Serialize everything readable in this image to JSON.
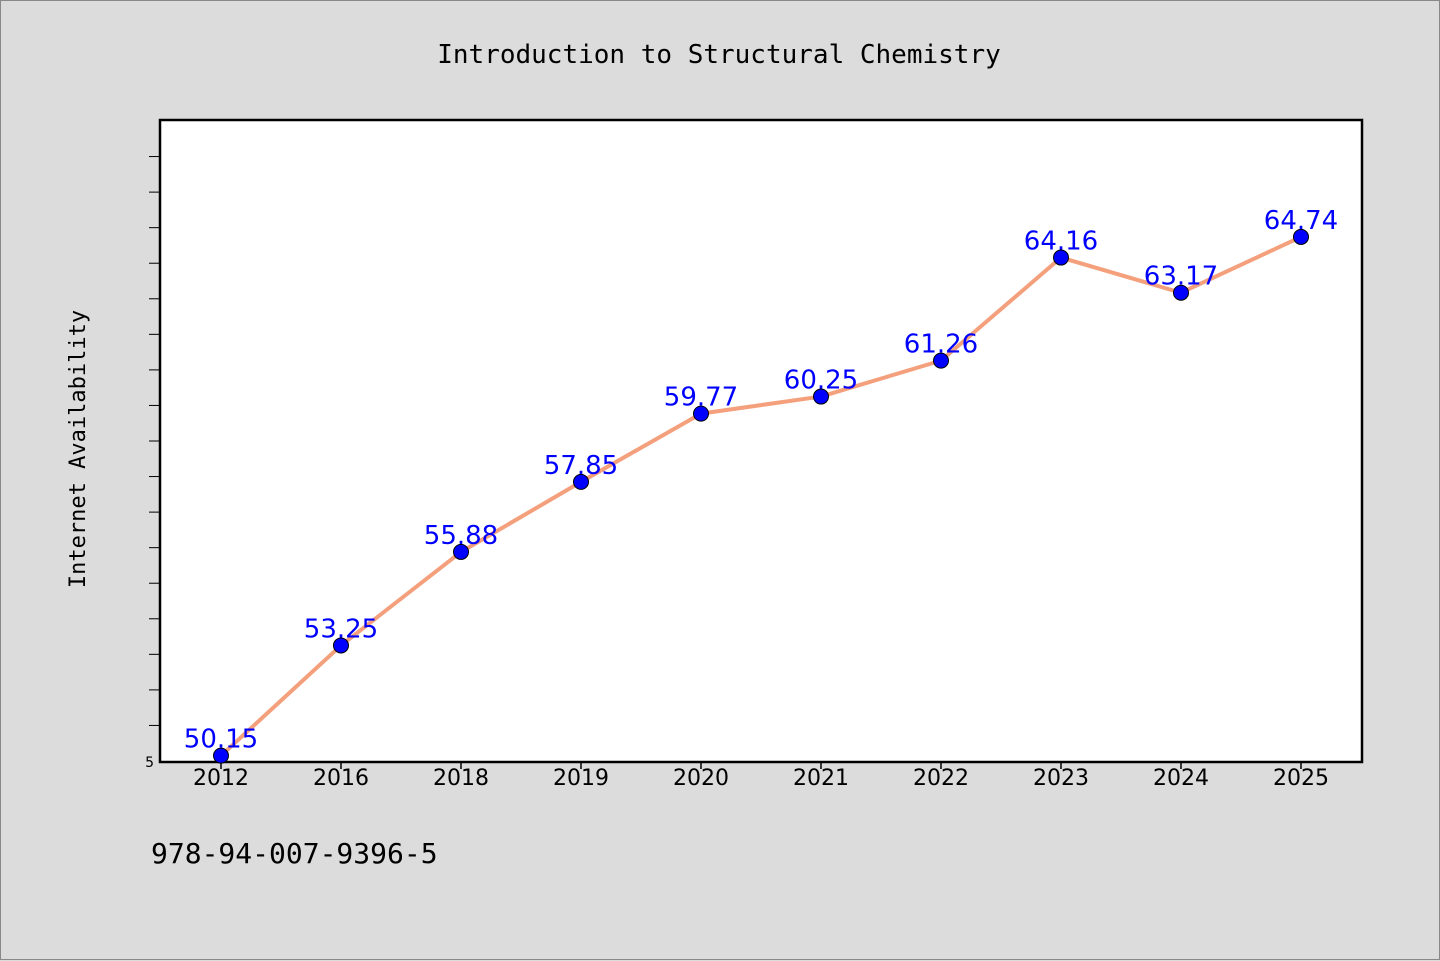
{
  "chart_data": {
    "type": "line",
    "title": "Introduction to Structural Chemistry",
    "ylabel": "Internet Availability",
    "xlabel": "",
    "categories": [
      "2012",
      "2016",
      "2018",
      "2019",
      "2020",
      "2021",
      "2022",
      "2023",
      "2024",
      "2025"
    ],
    "series": [
      {
        "values": [
          50.15,
          53.25,
          55.88,
          57.85,
          59.77,
          60.25,
          61.26,
          64.16,
          63.17,
          64.74
        ],
        "labels": [
          "50.15",
          "53.25",
          "55.88",
          "57.85",
          "59.77",
          "60.25",
          "61.26",
          "64.16",
          "63.17",
          "64.74"
        ]
      }
    ],
    "ylim": [
      50,
      68
    ],
    "ytick_label": "5",
    "grid": false,
    "line_color": "#f4a07c",
    "marker_color": "#0000ff",
    "label_color": "#0000ff"
  },
  "footer": {
    "isbn": "978-94-007-9396-5"
  }
}
